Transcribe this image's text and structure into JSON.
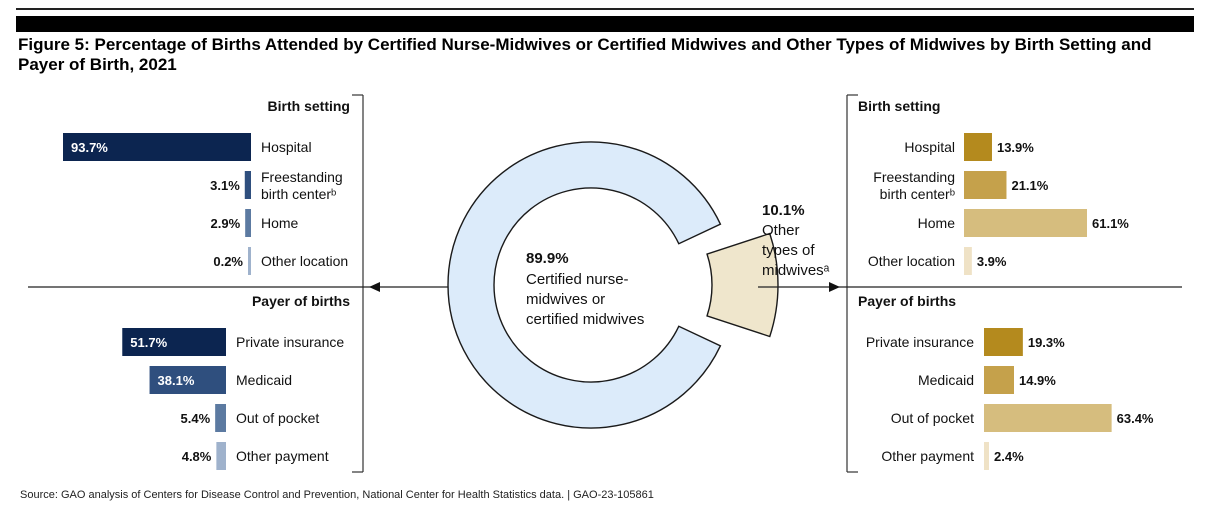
{
  "figure": {
    "title": "Figure 5: Percentage of Births Attended by Certified Nurse-Midwives or Certified Midwives and Other Types of Midwives by Birth Setting and Payer of Birth, 2021",
    "source": "Source: GAO analysis of Centers for Disease Control and Prevention, National Center for Health Statistics data.  |  GAO-23-105861"
  },
  "chart_data": [
    {
      "type": "pie",
      "variant": "donut",
      "categories": [
        "Certified nurse-midwives or certified midwives",
        "Other types of midwives"
      ],
      "values": [
        89.9,
        10.1
      ],
      "center_label": {
        "value": "89.9%",
        "lines": [
          "Certified nurse-",
          "midwives or",
          "certified midwives"
        ]
      },
      "side_label": {
        "value": "10.1%",
        "lines": [
          "Other",
          "types of",
          "midwivesᵃ"
        ]
      },
      "colors": [
        "#dcebfa",
        "#efe6cc"
      ]
    },
    {
      "type": "bar",
      "group": "cnm",
      "section": "Birth setting",
      "categories": [
        [
          "Hospital"
        ],
        [
          "Freestanding",
          "birth centerᵇ"
        ],
        [
          "Home"
        ],
        [
          "Other location"
        ]
      ],
      "values": [
        93.7,
        3.1,
        2.9,
        0.2
      ],
      "labels": [
        "93.7%",
        "3.1%",
        "2.9%",
        "0.2%"
      ],
      "colors": [
        "#0c2550",
        "#2f4f7e",
        "#5c7aa1",
        "#9fb2cc"
      ]
    },
    {
      "type": "bar",
      "group": "cnm",
      "section": "Payer of births",
      "categories": [
        [
          "Private insurance"
        ],
        [
          "Medicaid"
        ],
        [
          "Out of pocket"
        ],
        [
          "Other payment"
        ]
      ],
      "values": [
        51.7,
        38.1,
        5.4,
        4.8
      ],
      "labels": [
        "51.7%",
        "38.1%",
        "5.4%",
        "4.8%"
      ],
      "colors": [
        "#0c2550",
        "#2f4f7e",
        "#5c7aa1",
        "#9fb2cc"
      ]
    },
    {
      "type": "bar",
      "group": "other",
      "section": "Birth setting",
      "categories": [
        [
          "Hospital"
        ],
        [
          "Freestanding",
          "birth centerᵇ"
        ],
        [
          "Home"
        ],
        [
          "Other location"
        ]
      ],
      "values": [
        13.9,
        21.1,
        61.1,
        3.9
      ],
      "labels": [
        "13.9%",
        "21.1%",
        "61.1%",
        "3.9%"
      ],
      "colors": [
        "#b48a1e",
        "#c5a14b",
        "#d6bd7e",
        "#efe2c6"
      ]
    },
    {
      "type": "bar",
      "group": "other",
      "section": "Payer of births",
      "categories": [
        [
          "Private insurance"
        ],
        [
          "Medicaid"
        ],
        [
          "Out of pocket"
        ],
        [
          "Other payment"
        ]
      ],
      "values": [
        19.3,
        14.9,
        63.4,
        2.4
      ],
      "labels": [
        "19.3%",
        "14.9%",
        "63.4%",
        "2.4%"
      ],
      "colors": [
        "#b48a1e",
        "#c5a14b",
        "#d6bd7e",
        "#efe2c6"
      ]
    }
  ]
}
